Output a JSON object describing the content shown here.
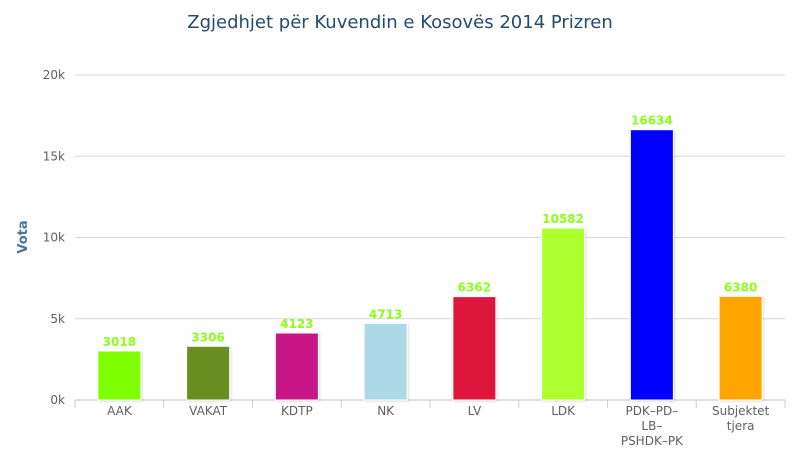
{
  "chart_data": {
    "type": "bar",
    "title": "Zgjedhjet për Kuvendin e Kosovës 2014 Prizren",
    "xlabel": "",
    "ylabel": "Vota",
    "ylim": [
      0,
      20000
    ],
    "y_ticks": [
      "0k",
      "5k",
      "10k",
      "15k",
      "20k"
    ],
    "categories": [
      "AAK",
      "VAKAT",
      "KDTP",
      "NK",
      "LV",
      "LDK",
      "PDK–PD–LB–PSHDK–PK",
      "Subjektet tjera"
    ],
    "category_lines": [
      [
        "AAK"
      ],
      [
        "VAKAT"
      ],
      [
        "KDTP"
      ],
      [
        "NK"
      ],
      [
        "LV"
      ],
      [
        "LDK"
      ],
      [
        "PDK–PD–",
        "LB–",
        "PSHDK–PK"
      ],
      [
        "Subjektet",
        "tjera"
      ]
    ],
    "values": [
      3018,
      3306,
      4123,
      4713,
      6362,
      10582,
      16634,
      6380
    ],
    "data_labels": [
      "3018",
      "3306",
      "4123",
      "4713",
      "6362",
      "10582",
      "16634",
      "6380"
    ],
    "colors": [
      "#7fff00",
      "#6b8e23",
      "#c71585",
      "#add8e6",
      "#dc143c",
      "#adff2f",
      "#0000ff",
      "#ffa500"
    ],
    "data_label_color": "#8bff1a",
    "grid": true,
    "legend": "none"
  }
}
